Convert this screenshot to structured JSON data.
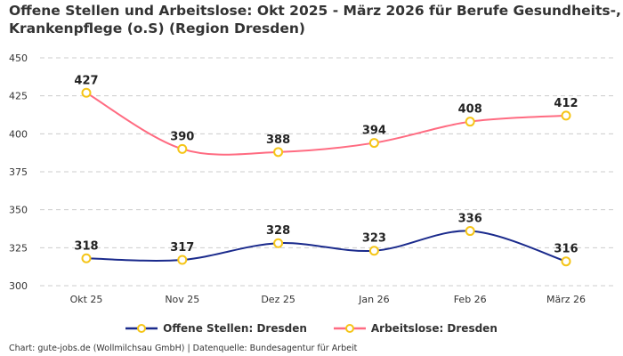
{
  "title": "Offene Stellen und Arbeitslose: Okt 2025 - März 2026 für Berufe Gesundheits-, Krankenpflege (o.S) (Region Dresden)",
  "credit": "Chart: gute-jobs.de (Wollmilchsau GmbH) | Datenquelle: Bundesagentur für Arbeit",
  "chart_data": {
    "type": "line",
    "categories": [
      "Okt 25",
      "Nov 25",
      "Dez 25",
      "Jan 26",
      "Feb 26",
      "März 26"
    ],
    "ylim": [
      300,
      450
    ],
    "yticks": [
      300,
      325,
      350,
      375,
      400,
      425,
      450
    ],
    "grid": true,
    "legend_position": "bottom",
    "marker_color": "#f5c518",
    "series": [
      {
        "name": "Offene Stellen: Dresden",
        "color": "#1a2a8c",
        "values": [
          318,
          317,
          328,
          323,
          336,
          316
        ]
      },
      {
        "name": "Arbeitslose: Dresden",
        "color": "#ff6b81",
        "values": [
          427,
          390,
          388,
          394,
          408,
          412
        ]
      }
    ]
  }
}
